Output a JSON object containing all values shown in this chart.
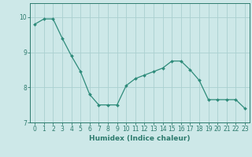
{
  "x": [
    0,
    1,
    2,
    3,
    4,
    5,
    6,
    7,
    8,
    9,
    10,
    11,
    12,
    13,
    14,
    15,
    16,
    17,
    18,
    19,
    20,
    21,
    22,
    23
  ],
  "y": [
    9.8,
    9.95,
    9.95,
    9.4,
    8.9,
    8.45,
    7.8,
    7.5,
    7.5,
    7.5,
    8.05,
    8.25,
    8.35,
    8.45,
    8.55,
    8.75,
    8.75,
    8.5,
    8.2,
    7.65,
    7.65,
    7.65,
    7.65,
    7.4
  ],
  "line_color": "#2e8b7a",
  "marker": "D",
  "marker_size": 2.0,
  "background_color": "#cde8e8",
  "grid_color": "#aad0d0",
  "xlabel": "Humidex (Indice chaleur)",
  "ylim": [
    7.0,
    10.4
  ],
  "xlim": [
    -0.5,
    23.5
  ],
  "yticks": [
    7,
    8,
    9,
    10
  ],
  "xtick_labels": [
    "0",
    "1",
    "2",
    "3",
    "4",
    "5",
    "6",
    "7",
    "8",
    "9",
    "10",
    "11",
    "12",
    "13",
    "14",
    "15",
    "16",
    "17",
    "18",
    "19",
    "20",
    "21",
    "22",
    "23"
  ],
  "tick_color": "#2e7b6e",
  "xlabel_fontsize": 6.5,
  "tick_fontsize": 5.5
}
